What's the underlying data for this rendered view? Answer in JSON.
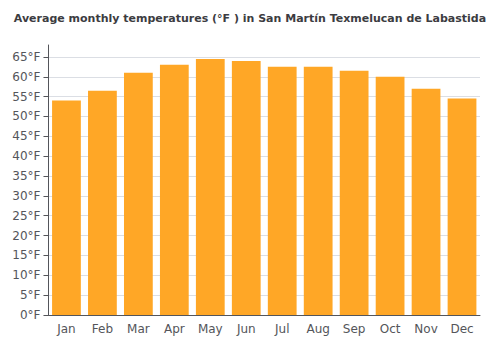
{
  "chart_data": {
    "type": "bar",
    "title": "Average monthly temperatures (°F ) in San Martín Texmelucan de Labastida",
    "categories": [
      "Jan",
      "Feb",
      "Mar",
      "Apr",
      "May",
      "Jun",
      "Jul",
      "Aug",
      "Sep",
      "Oct",
      "Nov",
      "Dec"
    ],
    "values": [
      54,
      56.5,
      61,
      63,
      64.5,
      64,
      62.5,
      62.5,
      61.5,
      60,
      57,
      54.5
    ],
    "color": "#FFA726",
    "ylim": [
      0,
      68
    ],
    "yticks": [
      {
        "value": 0,
        "label": "0°F"
      },
      {
        "value": 5,
        "label": "5°F"
      },
      {
        "value": 10,
        "label": "10°F"
      },
      {
        "value": 15,
        "label": "15°F"
      },
      {
        "value": 20,
        "label": "20°F"
      },
      {
        "value": 25,
        "label": "25°F"
      },
      {
        "value": 30,
        "label": "30°F"
      },
      {
        "value": 35,
        "label": "35°F"
      },
      {
        "value": 40,
        "label": "40°F"
      },
      {
        "value": 45,
        "label": "45°F"
      },
      {
        "value": 50,
        "label": "50°F"
      },
      {
        "value": 55,
        "label": "55°F"
      },
      {
        "value": 60,
        "label": "60°F"
      },
      {
        "value": 65,
        "label": "65°F"
      }
    ],
    "grid": true
  }
}
